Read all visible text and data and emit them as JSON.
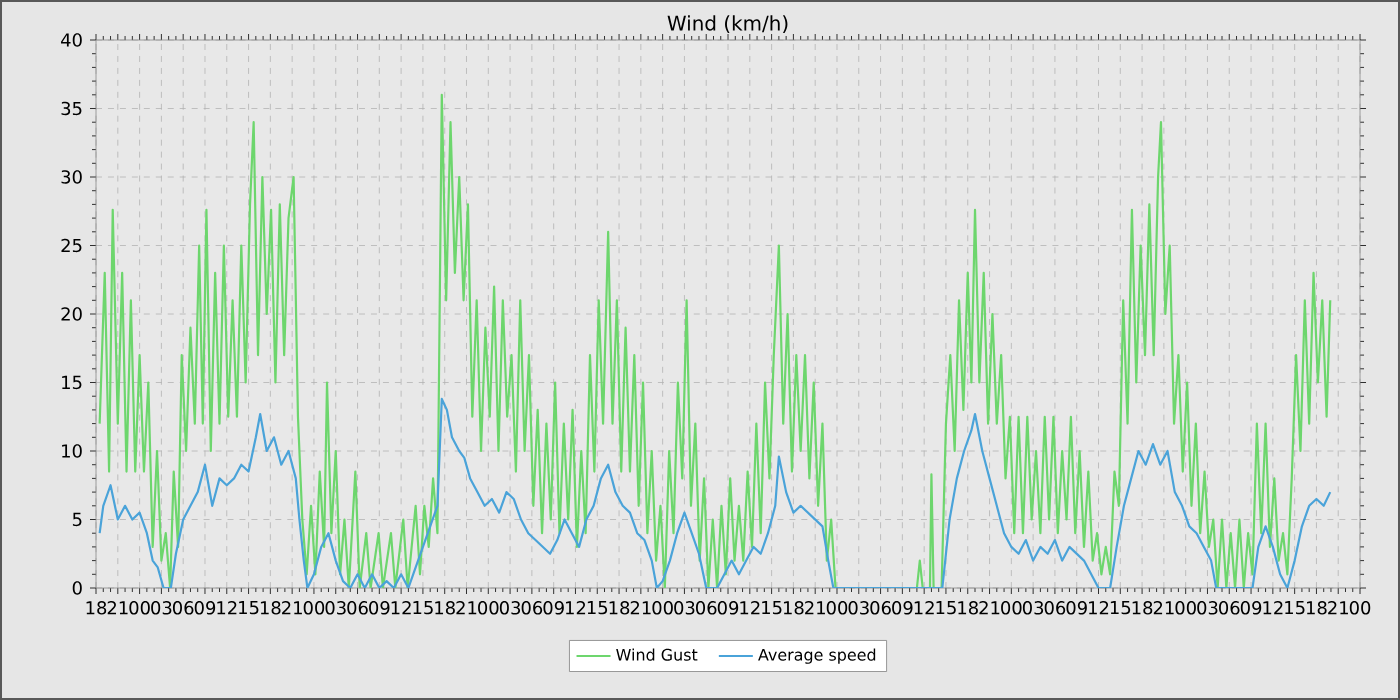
{
  "chart_data": {
    "type": "line",
    "title": "Wind (km/h)",
    "xlim": [
      18,
      192
    ],
    "ylim": [
      0,
      40
    ],
    "xticks": [
      {
        "value": 18,
        "label": "18"
      },
      {
        "value": 21,
        "label": "21"
      },
      {
        "value": 24,
        "label": "00"
      },
      {
        "value": 27,
        "label": "03"
      },
      {
        "value": 30,
        "label": "06"
      },
      {
        "value": 33,
        "label": "09"
      },
      {
        "value": 36,
        "label": "12"
      },
      {
        "value": 39,
        "label": "15"
      },
      {
        "value": 42,
        "label": "18"
      },
      {
        "value": 45,
        "label": "21"
      },
      {
        "value": 48,
        "label": "00"
      },
      {
        "value": 51,
        "label": "03"
      },
      {
        "value": 54,
        "label": "06"
      },
      {
        "value": 57,
        "label": "09"
      },
      {
        "value": 60,
        "label": "12"
      },
      {
        "value": 63,
        "label": "15"
      },
      {
        "value": 66,
        "label": "18"
      },
      {
        "value": 69,
        "label": "21"
      },
      {
        "value": 72,
        "label": "00"
      },
      {
        "value": 75,
        "label": "03"
      },
      {
        "value": 78,
        "label": "06"
      },
      {
        "value": 81,
        "label": "09"
      },
      {
        "value": 84,
        "label": "12"
      },
      {
        "value": 87,
        "label": "15"
      },
      {
        "value": 90,
        "label": "18"
      },
      {
        "value": 93,
        "label": "21"
      },
      {
        "value": 96,
        "label": "00"
      },
      {
        "value": 99,
        "label": "03"
      },
      {
        "value": 102,
        "label": "06"
      },
      {
        "value": 105,
        "label": "09"
      },
      {
        "value": 108,
        "label": "12"
      },
      {
        "value": 111,
        "label": "15"
      },
      {
        "value": 114,
        "label": "18"
      },
      {
        "value": 117,
        "label": "21"
      },
      {
        "value": 120,
        "label": "00"
      },
      {
        "value": 123,
        "label": "03"
      },
      {
        "value": 126,
        "label": "06"
      },
      {
        "value": 129,
        "label": "09"
      },
      {
        "value": 132,
        "label": "12"
      },
      {
        "value": 135,
        "label": "15"
      },
      {
        "value": 138,
        "label": "18"
      },
      {
        "value": 141,
        "label": "21"
      },
      {
        "value": 144,
        "label": "00"
      },
      {
        "value": 147,
        "label": "03"
      },
      {
        "value": 150,
        "label": "06"
      },
      {
        "value": 153,
        "label": "09"
      },
      {
        "value": 156,
        "label": "12"
      },
      {
        "value": 159,
        "label": "15"
      },
      {
        "value": 162,
        "label": "18"
      },
      {
        "value": 165,
        "label": "21"
      },
      {
        "value": 168,
        "label": "00"
      },
      {
        "value": 171,
        "label": "03"
      },
      {
        "value": 174,
        "label": "06"
      },
      {
        "value": 177,
        "label": "09"
      },
      {
        "value": 180,
        "label": "12"
      },
      {
        "value": 183,
        "label": "15"
      },
      {
        "value": 186,
        "label": "18"
      },
      {
        "value": 189,
        "label": "21"
      },
      {
        "value": 192,
        "label": "00"
      }
    ],
    "yticks": [
      0,
      5,
      10,
      15,
      20,
      25,
      30,
      35,
      40
    ],
    "grid": true,
    "legend": "bottom",
    "marker": "none",
    "line_style": "solid",
    "series": [
      {
        "name": "Wind Gust",
        "color": "#6dd66d",
        "x": [
          18.5,
          19.2,
          19.8,
          20.3,
          21,
          21.6,
          22.2,
          22.8,
          23.4,
          24,
          24.6,
          25.2,
          25.8,
          26.4,
          27,
          27.6,
          28.2,
          28.7,
          29.3,
          29.8,
          30.4,
          31,
          31.6,
          32.2,
          32.7,
          33.2,
          33.8,
          34.4,
          35,
          35.6,
          36.2,
          36.8,
          37.4,
          38,
          38.6,
          39.2,
          39.7,
          40.3,
          40.9,
          41.5,
          42.1,
          42.7,
          43.3,
          43.9,
          44.5,
          45.2,
          45.8,
          46.4,
          47,
          47.6,
          48.2,
          48.8,
          49.4,
          49.8,
          50.4,
          51,
          51.6,
          52.2,
          52.8,
          53.7,
          54.3,
          55.2,
          55.8,
          56.9,
          57.5,
          58.6,
          59.2,
          60.3,
          60.9,
          62,
          62.6,
          63.2,
          63.8,
          64.4,
          65,
          65.6,
          66.2,
          66.8,
          67.4,
          68,
          68.6,
          69.2,
          69.8,
          70.4,
          71,
          71.6,
          72.2,
          72.8,
          73.4,
          74,
          74.6,
          75.2,
          75.8,
          76.4,
          77,
          77.6,
          78.2,
          78.8,
          79.4,
          80,
          80.6,
          81.2,
          81.8,
          82.4,
          83,
          83.6,
          84.2,
          84.8,
          85.4,
          86,
          86.6,
          87.2,
          87.8,
          88.5,
          89.1,
          89.7,
          90.3,
          90.9,
          91.5,
          92.1,
          92.7,
          93.3,
          93.9,
          94.5,
          95.1,
          95.7,
          96.3,
          96.9,
          97.5,
          98.1,
          98.7,
          99.3,
          99.9,
          100.5,
          101.1,
          101.7,
          102.3,
          102.9,
          103.5,
          104.1,
          104.7,
          105.3,
          105.9,
          106.5,
          107.1,
          107.7,
          108.3,
          108.9,
          109.5,
          110.1,
          110.7,
          111.3,
          112,
          112.6,
          113.2,
          113.8,
          114.4,
          115,
          115.6,
          116.2,
          116.8,
          117.4,
          118,
          118.6,
          119.2,
          119.8,
          131,
          131.4,
          131.8,
          132.8,
          133,
          133.3,
          134.4,
          135,
          135.6,
          136.2,
          136.8,
          137.4,
          138,
          138.5,
          139,
          139.6,
          140.2,
          140.8,
          141.4,
          142,
          142.6,
          143.2,
          143.8,
          144.4,
          145,
          145.6,
          146.2,
          146.8,
          147.4,
          148,
          148.6,
          149.2,
          149.8,
          150.4,
          151,
          151.6,
          152.2,
          152.8,
          153.4,
          154,
          154.6,
          155.2,
          155.8,
          156.4,
          157,
          157.6,
          158.2,
          158.8,
          159.4,
          160,
          160.6,
          161.2,
          161.8,
          162.4,
          163,
          163.6,
          164.2,
          164.6,
          165.2,
          165.8,
          166.4,
          167,
          167.6,
          168.2,
          168.8,
          169.4,
          170,
          170.6,
          171.2,
          171.8,
          172.4,
          173,
          173.6,
          174.2,
          174.8,
          175.4,
          176,
          176.6,
          177.2,
          177.8,
          178.4,
          179,
          179.6,
          180.2,
          180.8,
          181.4,
          182,
          182.6,
          183.2,
          183.8,
          184.4,
          185,
          185.6,
          186.2,
          186.8,
          187.4,
          187.9
        ],
        "values": [
          12,
          23,
          8.5,
          27.6,
          12,
          23,
          8.5,
          21,
          8.5,
          17,
          8.5,
          15,
          3,
          10,
          2,
          4,
          0,
          8.5,
          3,
          17,
          10,
          19,
          12,
          25,
          12,
          27.6,
          10,
          23,
          12,
          25,
          12.5,
          21,
          12.5,
          25,
          15,
          28,
          34,
          17,
          30,
          20,
          27.6,
          15,
          28,
          17,
          27,
          30,
          12.5,
          5,
          1,
          6,
          1,
          8.5,
          3,
          15,
          4,
          10,
          1,
          5,
          0,
          8.5,
          0,
          4,
          0,
          4,
          0,
          4,
          0,
          5,
          0,
          6,
          1,
          6,
          3,
          8,
          4,
          36,
          21,
          34,
          23,
          30,
          21,
          28,
          12.5,
          21,
          10,
          19,
          12.5,
          22,
          10,
          21,
          12.5,
          17,
          8.5,
          21,
          10,
          17,
          6,
          13,
          4,
          12,
          5,
          15,
          4,
          12,
          5,
          13,
          3,
          10,
          4,
          17,
          8.5,
          21,
          12,
          26,
          12,
          21,
          8.5,
          19,
          8.5,
          17,
          6,
          15,
          4,
          10,
          2,
          6,
          0,
          10,
          4,
          15,
          8,
          21,
          6,
          12,
          2,
          8,
          0,
          5,
          0,
          6,
          1,
          8,
          2,
          6,
          2,
          8.5,
          3,
          12,
          4,
          15,
          8,
          17,
          25,
          12,
          20,
          8.5,
          17,
          10,
          17,
          8,
          15,
          6,
          12,
          2,
          5,
          0,
          0,
          2,
          0,
          0,
          8.3,
          0,
          0,
          12,
          17,
          10,
          21,
          13,
          23,
          15,
          27.6,
          15,
          23,
          12,
          20,
          12,
          17,
          8,
          12.5,
          4,
          12.5,
          4,
          12.5,
          5,
          10,
          4,
          12.5,
          5,
          12.5,
          4,
          10,
          5,
          12.5,
          4,
          10,
          3,
          8.5,
          2,
          4,
          1,
          3,
          1,
          8.5,
          6,
          21,
          12,
          27.6,
          15,
          25,
          17,
          28,
          17,
          30,
          34,
          20,
          25,
          12,
          17,
          8.5,
          15,
          6,
          12,
          4,
          8.5,
          3,
          5,
          0,
          5,
          0,
          4,
          0,
          5,
          0,
          4,
          1,
          12,
          4,
          12,
          3,
          8,
          2,
          4,
          1,
          8,
          17,
          10,
          21,
          12,
          23,
          15,
          21,
          12.5,
          21
        ]
      },
      {
        "name": "Average speed",
        "color": "#4aa3d9",
        "x": [
          18.5,
          19,
          20,
          21,
          22,
          23,
          24,
          25,
          25.8,
          26.5,
          27.3,
          28.3,
          29,
          30,
          31,
          32,
          33,
          34,
          35,
          36,
          37,
          38,
          39,
          40,
          40.6,
          41.5,
          42.5,
          43.5,
          44.5,
          45.5,
          46,
          46.6,
          47.1,
          48,
          49,
          50,
          51,
          52,
          53,
          54,
          55,
          56,
          57,
          58,
          59,
          60,
          61,
          62,
          63,
          64,
          65,
          65.6,
          66.3,
          67,
          68,
          68.7,
          69.5,
          70.5,
          71.5,
          72.5,
          73.5,
          74.5,
          75.5,
          76.5,
          77.5,
          78.5,
          79.5,
          80.5,
          81.5,
          82.5,
          83.5,
          84.5,
          85.5,
          86.5,
          87.5,
          88.5,
          89.5,
          90.5,
          91.5,
          92.5,
          93.5,
          94.5,
          95.2,
          96,
          97,
          98,
          99,
          100,
          101,
          102,
          103.5,
          104.5,
          105.5,
          106.5,
          107.5,
          108.5,
          109.5,
          110.5,
          111.5,
          112,
          113,
          114,
          115,
          116,
          117,
          118,
          118.8,
          119.5,
          134.5,
          135.5,
          136.5,
          137.5,
          138.5,
          139,
          140,
          141,
          142,
          143,
          144,
          145,
          146,
          147,
          148,
          149,
          150,
          151,
          152,
          153,
          154,
          155,
          156,
          157.6,
          158.5,
          159.5,
          160.5,
          161.5,
          162.5,
          163.5,
          164.5,
          165.5,
          166.5,
          167.5,
          168.5,
          169.5,
          170.5,
          171.5,
          172.2,
          177.2,
          178,
          179,
          180,
          181,
          182,
          183,
          184,
          185,
          186,
          187,
          187.9
        ],
        "values": [
          4,
          6,
          7.5,
          5,
          6,
          5,
          5.5,
          4,
          2,
          1.5,
          0,
          0,
          2.5,
          5,
          6,
          7,
          9,
          6,
          8,
          7.5,
          8,
          9,
          8.5,
          11,
          12.7,
          10,
          11,
          9,
          10,
          8,
          5,
          2,
          0,
          1,
          3,
          4,
          2,
          0.5,
          0,
          1,
          0,
          1,
          0,
          0.5,
          0,
          1,
          0,
          1.5,
          3,
          4.5,
          6,
          13.8,
          13,
          11,
          10,
          9.5,
          8,
          7,
          6,
          6.5,
          5.5,
          7,
          6.5,
          5,
          4,
          3.5,
          3,
          2.5,
          3.5,
          5,
          4,
          3,
          5,
          6,
          8,
          9,
          7,
          6,
          5.5,
          4,
          3.5,
          2,
          0,
          0.5,
          2,
          4,
          5.5,
          4,
          2.5,
          0,
          0,
          1,
          2,
          1,
          2,
          3,
          2.5,
          4,
          6,
          9.6,
          7,
          5.5,
          6,
          5.5,
          5,
          4.5,
          2,
          0,
          0,
          5,
          8,
          10,
          11.5,
          12.7,
          10,
          8,
          6,
          4,
          3,
          2.5,
          3.5,
          2,
          3,
          2.5,
          3.5,
          2,
          3,
          2.5,
          2,
          1,
          0,
          0,
          3,
          6,
          8,
          10,
          9,
          10.5,
          9,
          10,
          7,
          6,
          4.5,
          4,
          3,
          2,
          0,
          0,
          3,
          4.5,
          3,
          1,
          0,
          2,
          4.5,
          6,
          6.5,
          6,
          7
        ]
      }
    ]
  }
}
